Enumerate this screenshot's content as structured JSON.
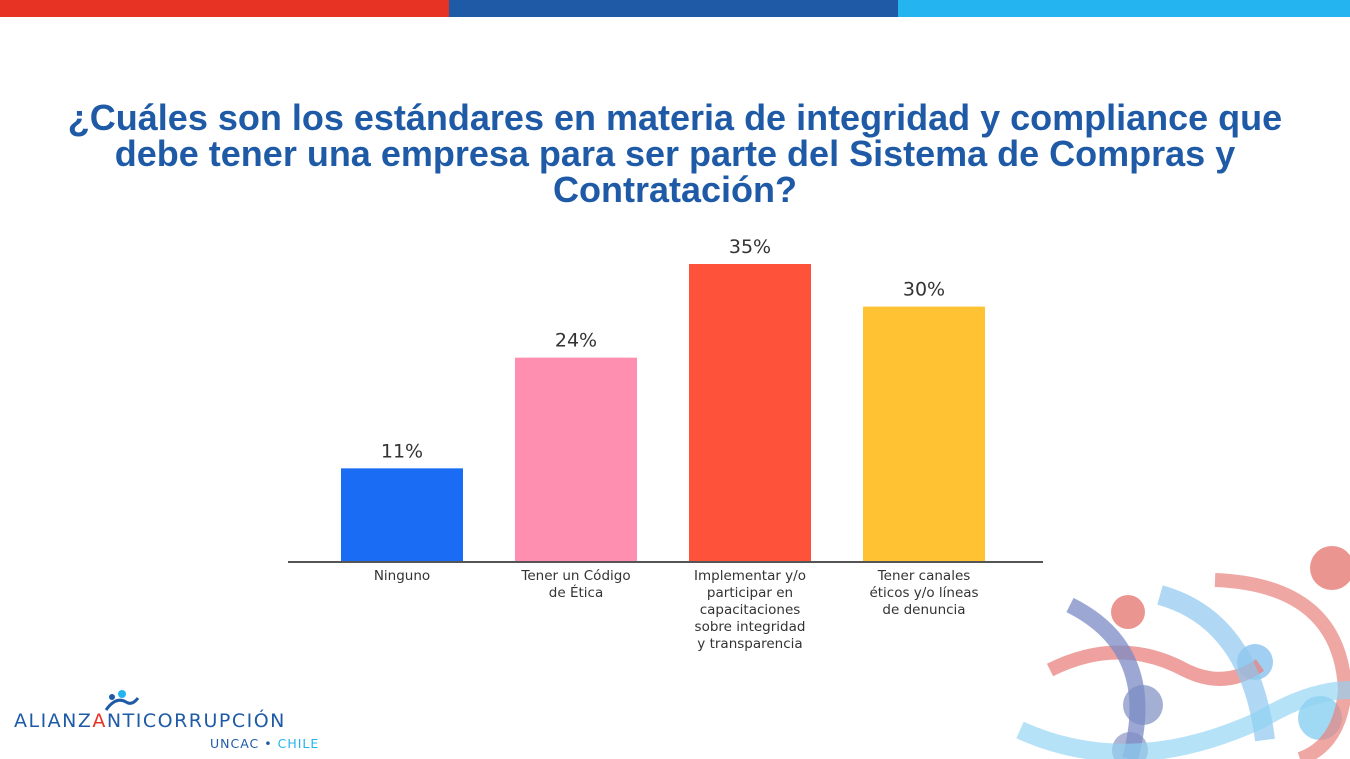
{
  "header": {
    "title": "¿Cuáles son los estándares en materia de integridad y compliance que debe tener una empresa para ser parte del Sistema de Compras y Contratación?"
  },
  "colors": {
    "brand_red": "#e63323",
    "brand_navy": "#1f5aa6",
    "brand_sky": "#24b4f0"
  },
  "chart_data": {
    "type": "bar",
    "categories": [
      [
        "Ninguno"
      ],
      [
        "Tener un Código",
        "de Ética"
      ],
      [
        "Implementar y/o",
        "participar en",
        "capacitaciones",
        "sobre integridad",
        "y transparencia"
      ],
      [
        "Tener canales",
        "éticos y/o líneas",
        "de denuncia"
      ]
    ],
    "values": [
      11,
      24,
      35,
      30
    ],
    "data_labels": [
      "11%",
      "24%",
      "35%",
      "30%"
    ],
    "bar_colors": [
      "#1a6cf5",
      "#ff8fb1",
      "#ff523b",
      "#ffc233"
    ],
    "ylim": [
      0,
      35
    ],
    "grid": false
  },
  "logo": {
    "name_part1": "ALIANZ",
    "name_part2": "A",
    "name_part3": "NTICORRUPCIÓN",
    "sub_part1": "UNCAC • ",
    "sub_part2": "CHILE"
  }
}
